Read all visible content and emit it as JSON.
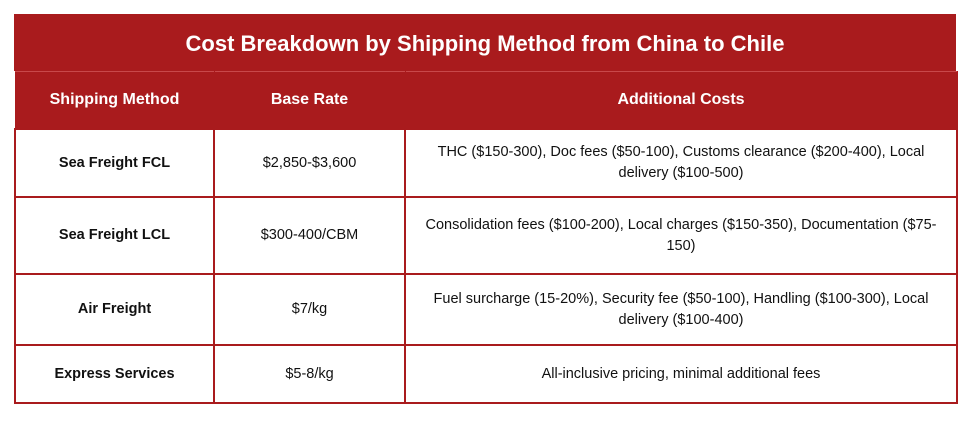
{
  "table": {
    "title": "Cost Breakdown by Shipping Method from China to Chile",
    "headers": [
      "Shipping Method",
      "Base Rate",
      "Additional Costs"
    ],
    "rows": [
      {
        "method": "Sea Freight FCL",
        "base_rate": "$2,850-$3,600",
        "additional_costs": "THC ($150-300), Doc fees ($50-100), Customs clearance ($200-400), Local delivery ($100-500)"
      },
      {
        "method": "Sea Freight LCL",
        "base_rate": "$300-400/CBM",
        "additional_costs": "Consolidation fees ($100-200), Local charges ($150-350), Documentation ($75-150)"
      },
      {
        "method": "Air Freight",
        "base_rate": "$7/kg",
        "additional_costs": "Fuel surcharge (15-20%), Security fee ($50-100), Handling ($100-300), Local delivery ($100-400)"
      },
      {
        "method": "Express Services",
        "base_rate": "$5-8/kg",
        "additional_costs": "All-inclusive pricing, minimal additional fees"
      }
    ]
  },
  "colors": {
    "header_bg": "#a91b1d",
    "header_text": "#ffffff",
    "border": "#a91b1d",
    "cell_text": "#111111"
  }
}
